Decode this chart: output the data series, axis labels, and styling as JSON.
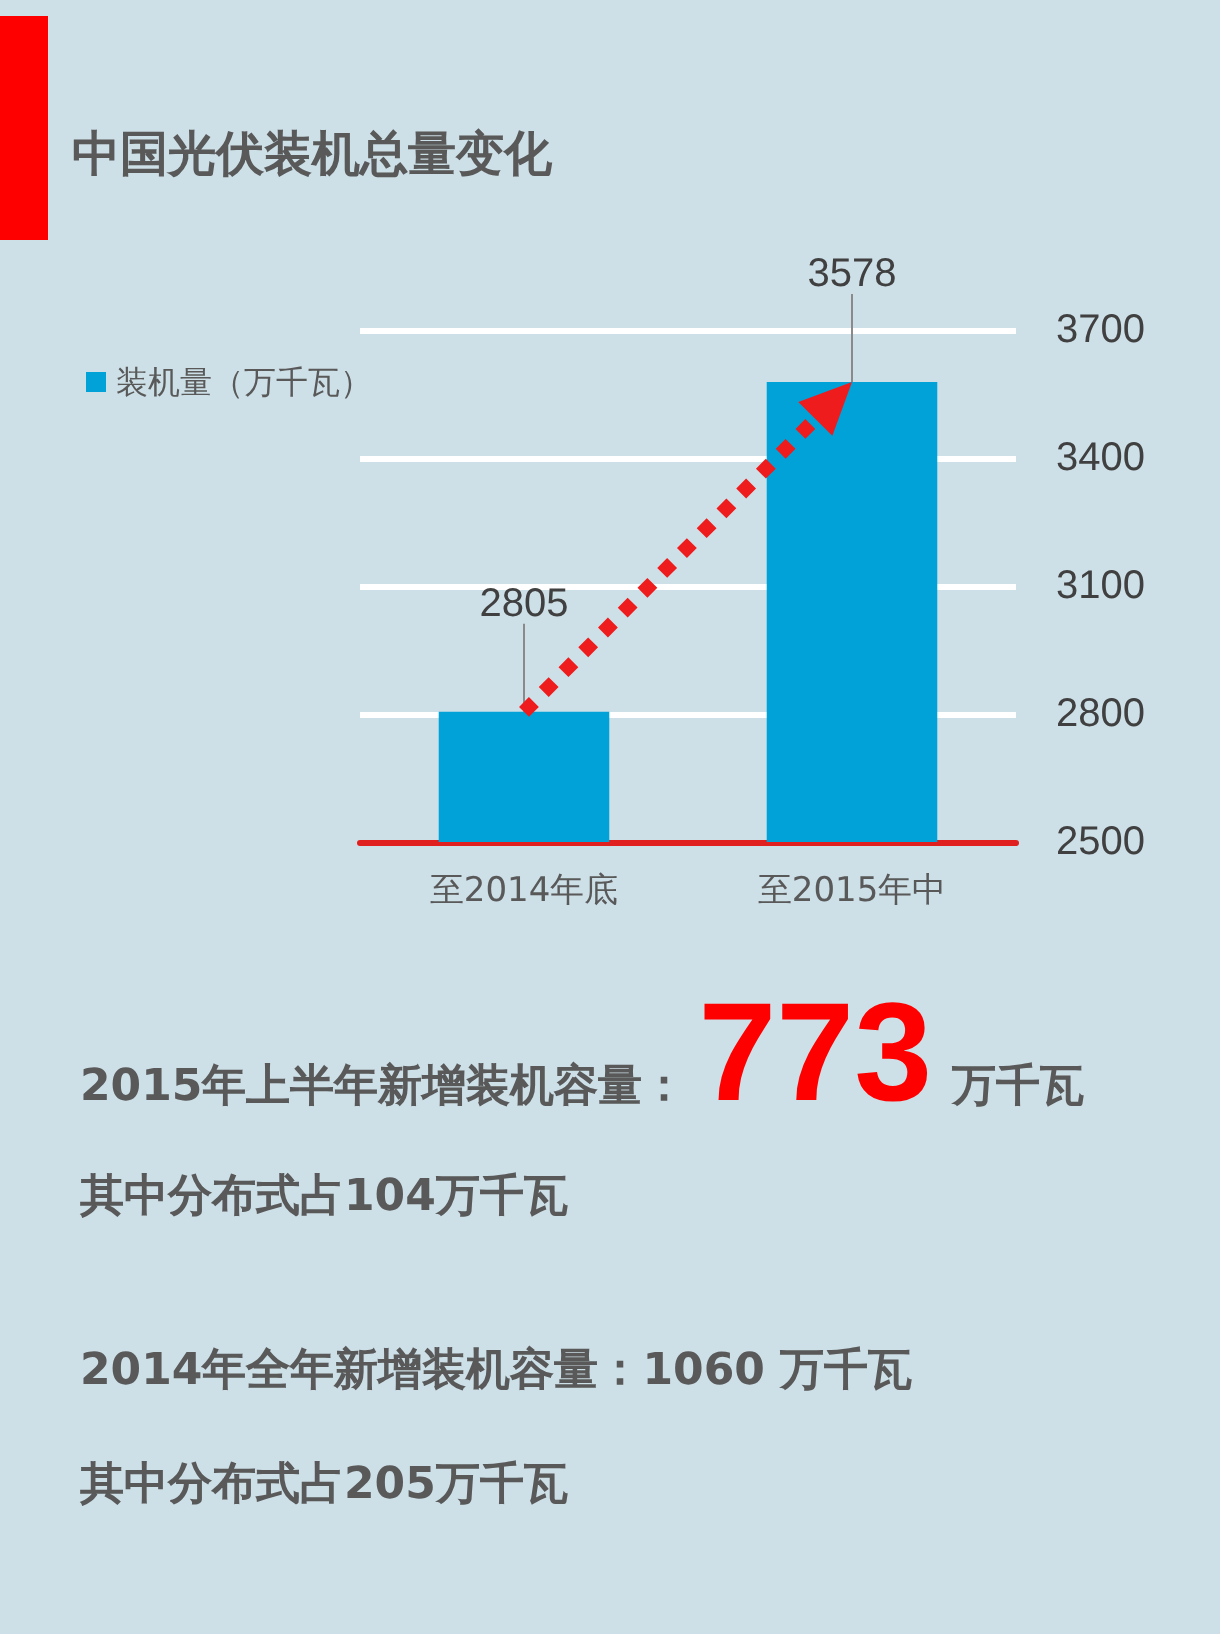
{
  "chart_data": {
    "type": "bar",
    "title": "中国光伏装机总量变化",
    "categories": [
      "至2014年底",
      "至2015年中"
    ],
    "series": [
      {
        "name": "装机量（万千瓦）",
        "color": "#00a2d8",
        "values": [
          2805,
          3578
        ]
      }
    ],
    "ylim": [
      2500,
      3700
    ],
    "yticks": [
      2500,
      2800,
      3100,
      3400,
      3700
    ],
    "grid": "y",
    "legend": "top left",
    "data_labels": true,
    "annotations": [
      "2015年上半年新增装机容量：",
      "773",
      "万千瓦",
      "其中分布式占104万千瓦",
      "2014年全年新增装机容量：1060 万千瓦",
      "其中分布式占205万千瓦"
    ]
  }
}
